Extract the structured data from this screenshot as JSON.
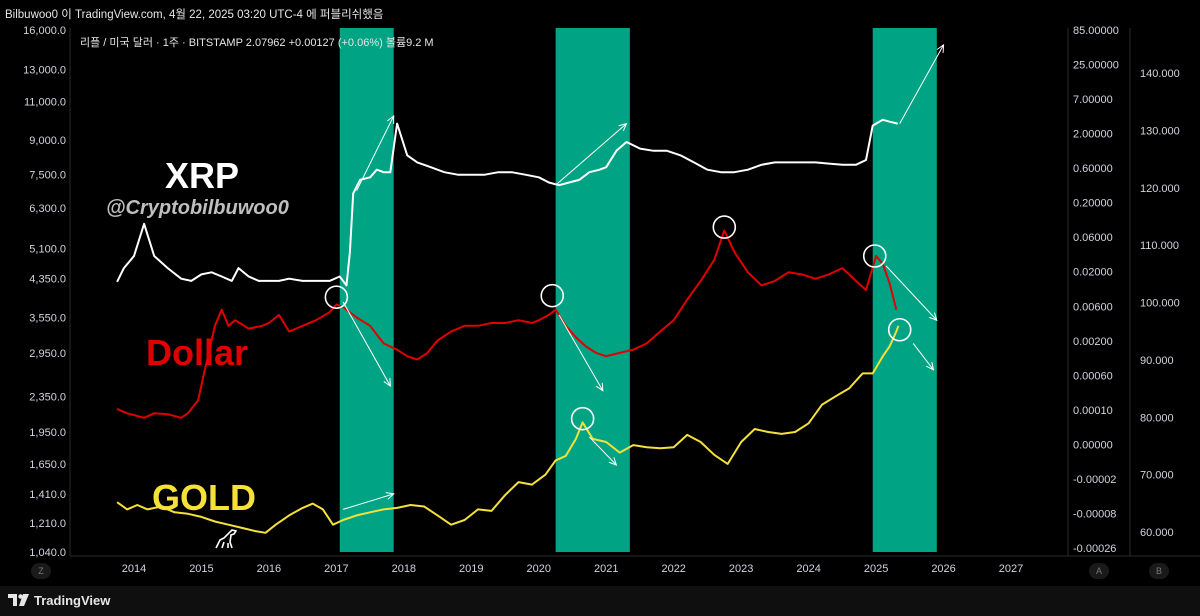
{
  "header": {
    "snapshot_text": "Bilbuwoo0 이 TradingView.com, 4월 22, 2025 03:20 UTC-4 에 퍼블리쉬했음"
  },
  "footer": {
    "logo_text": "TradingView",
    "left_axis_button": "Z",
    "axis_button_a": "A",
    "axis_button_b": "B"
  },
  "colors": {
    "background": "#000000",
    "highlight": "#00a383",
    "xrp": "#ffffff",
    "dollar": "#e00000",
    "gold": "#f5e13a",
    "arrows": "#ffffff",
    "axis_text": "#d1d4dc"
  },
  "chart_data": {
    "type": "line",
    "symbol_info": "리플 / 미국 달러 · 1주 · BITSTAMP  2.07962  +0.00127 (+0.06%)  볼륨9.2 M",
    "annotations": {
      "xrp_label": "XRP",
      "handle": "@Cryptobilbuwoo0",
      "dollar_label": "Dollar",
      "gold_label": "GOLD"
    },
    "x_ticks": [
      "2014",
      "2015",
      "2016",
      "2017",
      "2018",
      "2019",
      "2020",
      "2021",
      "2022",
      "2023",
      "2024",
      "2025",
      "2026",
      "2027"
    ],
    "left_axis_ticks": [
      "16,000.0",
      "13,000.0",
      "11,000.0",
      "9,000.0",
      "7,500.0",
      "6,300.0",
      "5,100.0",
      "4,350.0",
      "3,550.0",
      "2,950.0",
      "2,350.0",
      "1,950.0",
      "1,650.0",
      "1,410.0",
      "1,210.0",
      "1,040.0"
    ],
    "mid_axis_ticks": [
      "85.00000",
      "25.00000",
      "7.00000",
      "2.00000",
      "0.60000",
      "0.20000",
      "0.06000",
      "0.02000",
      "0.00600",
      "0.00200",
      "0.00060",
      "0.00010",
      "0.00000",
      "-0.00002",
      "-0.00008",
      "-0.00026"
    ],
    "right_axis_ticks": [
      "140.000",
      "130.000",
      "120.000",
      "110.000",
      "100.000",
      "90.000",
      "80.000",
      "70.000",
      "60.000"
    ],
    "highlight_periods": [
      {
        "start": 2017.05,
        "end": 2017.85
      },
      {
        "start": 2020.25,
        "end": 2021.35
      },
      {
        "start": 2024.95,
        "end": 2025.9
      }
    ],
    "series": [
      {
        "key": "xrp",
        "points": [
          [
            2013.75,
            4280
          ],
          [
            2013.85,
            4600
          ],
          [
            2014.0,
            4900
          ],
          [
            2014.15,
            5800
          ],
          [
            2014.3,
            4900
          ],
          [
            2014.5,
            4600
          ],
          [
            2014.7,
            4350
          ],
          [
            2014.85,
            4300
          ],
          [
            2015.0,
            4450
          ],
          [
            2015.15,
            4500
          ],
          [
            2015.3,
            4400
          ],
          [
            2015.45,
            4300
          ],
          [
            2015.55,
            4600
          ],
          [
            2015.7,
            4400
          ],
          [
            2015.85,
            4300
          ],
          [
            2016.0,
            4300
          ],
          [
            2016.15,
            4300
          ],
          [
            2016.3,
            4350
          ],
          [
            2016.5,
            4300
          ],
          [
            2016.7,
            4300
          ],
          [
            2016.9,
            4300
          ],
          [
            2017.05,
            4400
          ],
          [
            2017.15,
            4200
          ],
          [
            2017.2,
            5000
          ],
          [
            2017.25,
            6800
          ],
          [
            2017.35,
            7300
          ],
          [
            2017.5,
            7400
          ],
          [
            2017.6,
            7700
          ],
          [
            2017.7,
            7600
          ],
          [
            2017.8,
            7600
          ],
          [
            2017.9,
            9800
          ],
          [
            2018.05,
            8300
          ],
          [
            2018.2,
            8000
          ],
          [
            2018.4,
            7800
          ],
          [
            2018.6,
            7600
          ],
          [
            2018.8,
            7500
          ],
          [
            2019.0,
            7500
          ],
          [
            2019.2,
            7500
          ],
          [
            2019.4,
            7600
          ],
          [
            2019.6,
            7600
          ],
          [
            2019.8,
            7500
          ],
          [
            2020.0,
            7400
          ],
          [
            2020.15,
            7200
          ],
          [
            2020.3,
            7100
          ],
          [
            2020.45,
            7200
          ],
          [
            2020.6,
            7300
          ],
          [
            2020.75,
            7600
          ],
          [
            2020.9,
            7700
          ],
          [
            2021.0,
            7800
          ],
          [
            2021.15,
            8500
          ],
          [
            2021.3,
            8900
          ],
          [
            2021.5,
            8600
          ],
          [
            2021.7,
            8500
          ],
          [
            2021.9,
            8500
          ],
          [
            2022.1,
            8300
          ],
          [
            2022.3,
            8000
          ],
          [
            2022.5,
            7700
          ],
          [
            2022.7,
            7600
          ],
          [
            2022.9,
            7600
          ],
          [
            2023.1,
            7700
          ],
          [
            2023.3,
            7900
          ],
          [
            2023.5,
            8000
          ],
          [
            2023.7,
            8000
          ],
          [
            2023.9,
            8000
          ],
          [
            2024.1,
            8000
          ],
          [
            2024.3,
            7950
          ],
          [
            2024.5,
            7900
          ],
          [
            2024.7,
            7900
          ],
          [
            2024.85,
            8100
          ],
          [
            2024.95,
            9700
          ],
          [
            2025.1,
            10000
          ],
          [
            2025.2,
            9900
          ],
          [
            2025.32,
            9800
          ]
        ]
      },
      {
        "key": "dollar",
        "points": [
          [
            2013.75,
            2200
          ],
          [
            2013.9,
            2150
          ],
          [
            2014.0,
            2130
          ],
          [
            2014.15,
            2100
          ],
          [
            2014.3,
            2150
          ],
          [
            2014.5,
            2140
          ],
          [
            2014.7,
            2100
          ],
          [
            2014.8,
            2150
          ],
          [
            2014.95,
            2300
          ],
          [
            2015.05,
            2700
          ],
          [
            2015.2,
            3400
          ],
          [
            2015.3,
            3700
          ],
          [
            2015.4,
            3400
          ],
          [
            2015.5,
            3500
          ],
          [
            2015.7,
            3350
          ],
          [
            2015.9,
            3400
          ],
          [
            2016.0,
            3450
          ],
          [
            2016.15,
            3600
          ],
          [
            2016.3,
            3300
          ],
          [
            2016.5,
            3400
          ],
          [
            2016.7,
            3500
          ],
          [
            2016.9,
            3650
          ],
          [
            2017.0,
            3800
          ],
          [
            2017.1,
            3750
          ],
          [
            2017.3,
            3550
          ],
          [
            2017.5,
            3400
          ],
          [
            2017.7,
            3100
          ],
          [
            2017.9,
            3000
          ],
          [
            2018.05,
            2900
          ],
          [
            2018.2,
            2850
          ],
          [
            2018.35,
            2950
          ],
          [
            2018.5,
            3150
          ],
          [
            2018.7,
            3300
          ],
          [
            2018.9,
            3400
          ],
          [
            2019.1,
            3400
          ],
          [
            2019.3,
            3450
          ],
          [
            2019.5,
            3450
          ],
          [
            2019.7,
            3500
          ],
          [
            2019.9,
            3450
          ],
          [
            2020.0,
            3500
          ],
          [
            2020.15,
            3600
          ],
          [
            2020.25,
            3700
          ],
          [
            2020.4,
            3400
          ],
          [
            2020.55,
            3200
          ],
          [
            2020.7,
            3050
          ],
          [
            2020.85,
            2950
          ],
          [
            2021.0,
            2900
          ],
          [
            2021.2,
            2950
          ],
          [
            2021.4,
            3000
          ],
          [
            2021.6,
            3100
          ],
          [
            2021.8,
            3300
          ],
          [
            2022.0,
            3500
          ],
          [
            2022.2,
            3900
          ],
          [
            2022.4,
            4300
          ],
          [
            2022.6,
            4800
          ],
          [
            2022.75,
            5600
          ],
          [
            2022.9,
            5000
          ],
          [
            2023.1,
            4500
          ],
          [
            2023.3,
            4200
          ],
          [
            2023.5,
            4300
          ],
          [
            2023.7,
            4500
          ],
          [
            2023.9,
            4450
          ],
          [
            2024.1,
            4350
          ],
          [
            2024.3,
            4450
          ],
          [
            2024.5,
            4600
          ],
          [
            2024.7,
            4300
          ],
          [
            2024.85,
            4100
          ],
          [
            2025.0,
            4900
          ],
          [
            2025.1,
            4700
          ],
          [
            2025.2,
            4250
          ],
          [
            2025.3,
            3700
          ]
        ]
      },
      {
        "key": "gold",
        "points": [
          [
            2013.75,
            1350
          ],
          [
            2013.9,
            1300
          ],
          [
            2014.05,
            1330
          ],
          [
            2014.2,
            1300
          ],
          [
            2014.4,
            1320
          ],
          [
            2014.6,
            1280
          ],
          [
            2014.8,
            1270
          ],
          [
            2015.0,
            1250
          ],
          [
            2015.2,
            1220
          ],
          [
            2015.4,
            1200
          ],
          [
            2015.6,
            1180
          ],
          [
            2015.8,
            1160
          ],
          [
            2015.95,
            1150
          ],
          [
            2016.1,
            1200
          ],
          [
            2016.3,
            1260
          ],
          [
            2016.5,
            1310
          ],
          [
            2016.65,
            1340
          ],
          [
            2016.8,
            1300
          ],
          [
            2016.95,
            1200
          ],
          [
            2017.1,
            1230
          ],
          [
            2017.3,
            1260
          ],
          [
            2017.5,
            1280
          ],
          [
            2017.7,
            1300
          ],
          [
            2017.9,
            1310
          ],
          [
            2018.1,
            1330
          ],
          [
            2018.3,
            1320
          ],
          [
            2018.5,
            1260
          ],
          [
            2018.7,
            1200
          ],
          [
            2018.9,
            1230
          ],
          [
            2019.1,
            1300
          ],
          [
            2019.3,
            1290
          ],
          [
            2019.5,
            1400
          ],
          [
            2019.7,
            1500
          ],
          [
            2019.9,
            1480
          ],
          [
            2020.1,
            1560
          ],
          [
            2020.25,
            1680
          ],
          [
            2020.4,
            1720
          ],
          [
            2020.55,
            1880
          ],
          [
            2020.65,
            2050
          ],
          [
            2020.8,
            1880
          ],
          [
            2021.0,
            1850
          ],
          [
            2021.2,
            1750
          ],
          [
            2021.4,
            1820
          ],
          [
            2021.6,
            1800
          ],
          [
            2021.8,
            1790
          ],
          [
            2022.0,
            1800
          ],
          [
            2022.2,
            1920
          ],
          [
            2022.4,
            1850
          ],
          [
            2022.6,
            1730
          ],
          [
            2022.8,
            1650
          ],
          [
            2023.0,
            1850
          ],
          [
            2023.2,
            1980
          ],
          [
            2023.4,
            1950
          ],
          [
            2023.6,
            1930
          ],
          [
            2023.8,
            1950
          ],
          [
            2024.0,
            2040
          ],
          [
            2024.2,
            2250
          ],
          [
            2024.4,
            2350
          ],
          [
            2024.6,
            2450
          ],
          [
            2024.8,
            2650
          ],
          [
            2024.95,
            2650
          ],
          [
            2025.1,
            2900
          ],
          [
            2025.2,
            3050
          ],
          [
            2025.3,
            3300
          ],
          [
            2025.33,
            3400
          ]
        ]
      }
    ],
    "circles": [
      {
        "x": 2017.0,
        "y": 3950
      },
      {
        "x": 2020.2,
        "y": 3980
      },
      {
        "x": 2022.75,
        "y": 5700
      },
      {
        "x": 2024.98,
        "y": 4900
      },
      {
        "x": 2025.35,
        "y": 3330
      },
      {
        "x": 2020.65,
        "y": 2090
      }
    ],
    "arrows": [
      {
        "from": [
          2017.3,
          6900
        ],
        "to": [
          2017.85,
          10200
        ]
      },
      {
        "from": [
          2020.25,
          7100
        ],
        "to": [
          2021.3,
          9800
        ]
      },
      {
        "from": [
          2025.35,
          9800
        ],
        "to": [
          2026.0,
          14800
        ]
      },
      {
        "from": [
          2017.1,
          3850
        ],
        "to": [
          2017.8,
          2480
        ]
      },
      {
        "from": [
          2020.3,
          3600
        ],
        "to": [
          2020.95,
          2420
        ]
      },
      {
        "from": [
          2025.15,
          4650
        ],
        "to": [
          2025.9,
          3500
        ]
      },
      {
        "from": [
          2025.55,
          3100
        ],
        "to": [
          2025.85,
          2700
        ]
      },
      {
        "from": [
          2017.1,
          1300
        ],
        "to": [
          2017.85,
          1410
        ]
      },
      {
        "from": [
          2020.75,
          1900
        ],
        "to": [
          2021.15,
          1640
        ]
      }
    ],
    "x_range": [
      2013.2,
      2027.8
    ],
    "y_range": [
      1040,
      16000
    ],
    "y_scale": "log",
    "grid": false,
    "legend": "none"
  }
}
